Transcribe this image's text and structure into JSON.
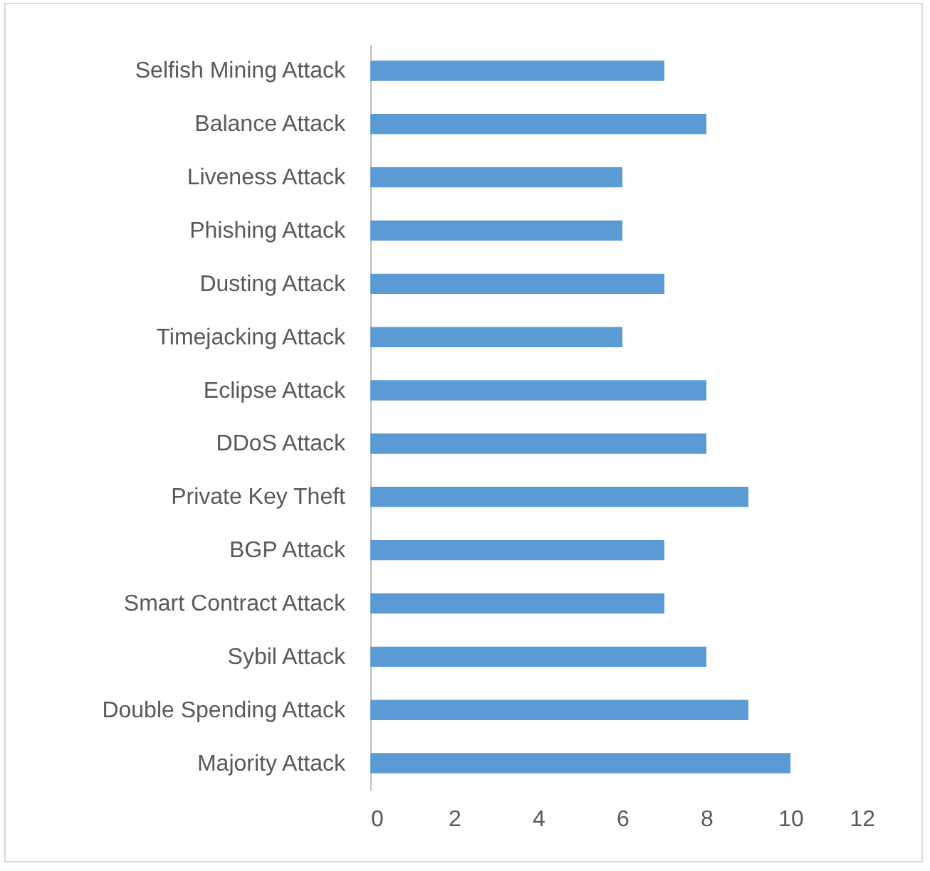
{
  "chart_data": {
    "type": "bar",
    "orientation": "horizontal",
    "categories": [
      "Selfish Mining Attack",
      "Balance Attack",
      "Liveness Attack",
      "Phishing Attack",
      "Dusting Attack",
      "Timejacking Attack",
      "Eclipse Attack",
      "DDoS Attack",
      "Private Key Theft",
      "BGP Attack",
      "Smart Contract Attack",
      "Sybil Attack",
      "Double Spending Attack",
      "Majority Attack"
    ],
    "values": [
      7,
      8,
      6,
      6,
      7,
      6,
      8,
      8,
      9,
      7,
      7,
      8,
      9,
      10
    ],
    "color": "#5b9bd5",
    "xlim": [
      0,
      12
    ],
    "xticks": [
      0,
      2,
      4,
      6,
      8,
      10,
      12
    ],
    "grid": false
  }
}
